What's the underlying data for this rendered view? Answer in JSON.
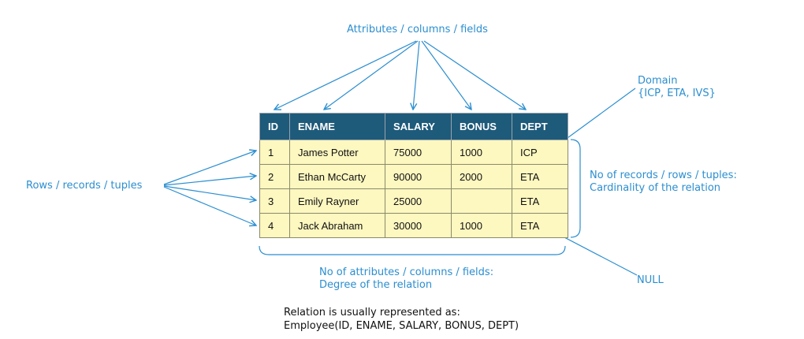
{
  "labels": {
    "attributes": "Attributes / columns / fields",
    "rows": "Rows / records / tuples",
    "domain_title": "Domain",
    "domain_values": "{ICP, ETA, IVS}",
    "cardinality_line1": "No of records / rows / tuples:",
    "cardinality_line2": "Cardinality of the relation",
    "degree_line1": "No of attributes / columns / fields:",
    "degree_line2": "Degree of the relation",
    "null": "NULL"
  },
  "table": {
    "headers": [
      "ID",
      "ENAME",
      "SALARY",
      "BONUS",
      "DEPT"
    ],
    "rows": [
      [
        "1",
        "James Potter",
        "75000",
        "1000",
        "ICP"
      ],
      [
        "2",
        "Ethan McCarty",
        "90000",
        "2000",
        "ETA"
      ],
      [
        "3",
        "Emily Rayner",
        "25000",
        "",
        "ETA"
      ],
      [
        "4",
        "Jack Abraham",
        "30000",
        "1000",
        "ETA"
      ]
    ]
  },
  "note": {
    "line1": "Relation is usually represented as:",
    "line2": "Employee(ID, ENAME, SALARY, BONUS, DEPT)"
  },
  "colors": {
    "annotation": "#2b8ed0",
    "header_bg": "#1e5a7a",
    "cell_bg": "#fdf7c0"
  }
}
